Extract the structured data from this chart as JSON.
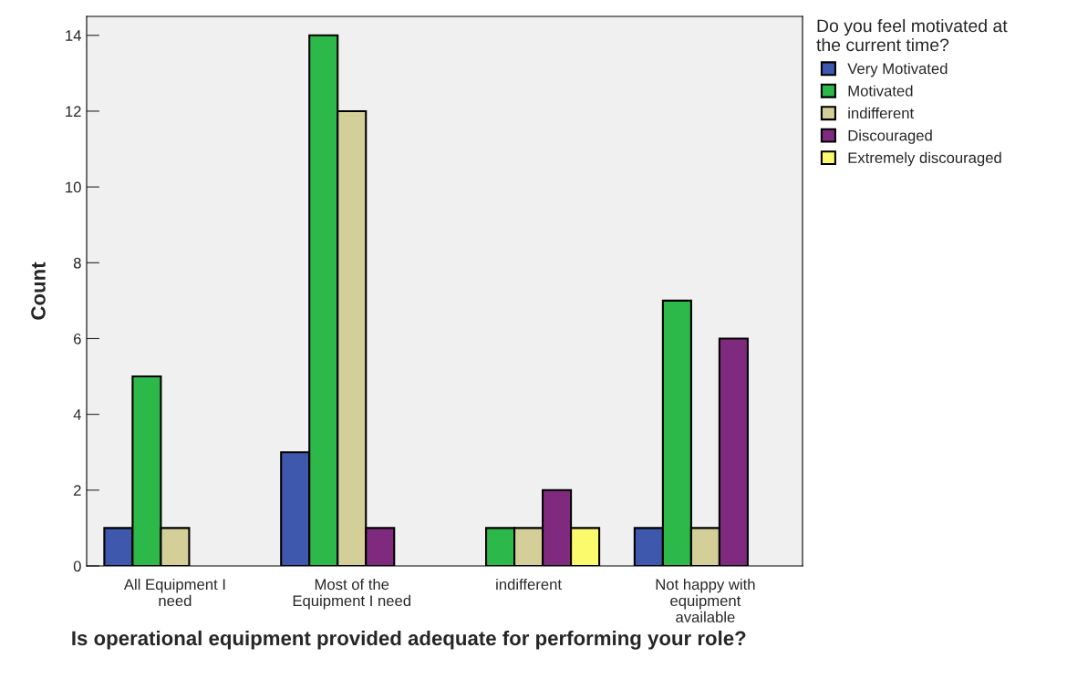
{
  "chart_data": {
    "type": "bar",
    "xlabel": "Is operational equipment provided adequate for performing your role?",
    "ylabel": "Count",
    "legend_title": "Do you feel motivated at\nthe current time?",
    "categories": [
      "All Equipment I\nneed",
      "Most of the\nEquipment I need",
      "indifferent",
      "Not happy with\nequipment\navailable"
    ],
    "series": [
      {
        "name": "Very Motivated",
        "color": "#3d58ad",
        "values": [
          1,
          3,
          null,
          1
        ]
      },
      {
        "name": "Motivated",
        "color": "#2db84a",
        "values": [
          5,
          14,
          1,
          7
        ]
      },
      {
        "name": "indifferent",
        "color": "#d4cf98",
        "values": [
          1,
          12,
          1,
          1
        ]
      },
      {
        "name": "Discouraged",
        "color": "#7f2a7f",
        "values": [
          null,
          1,
          2,
          6
        ]
      },
      {
        "name": "Extremely discouraged",
        "color": "#fbf96c",
        "values": [
          null,
          null,
          1,
          null
        ]
      }
    ],
    "ylim": [
      0,
      14.5
    ],
    "yticks": [
      0,
      2,
      4,
      6,
      8,
      10,
      12,
      14
    ],
    "grid": false,
    "legend": "top right"
  }
}
